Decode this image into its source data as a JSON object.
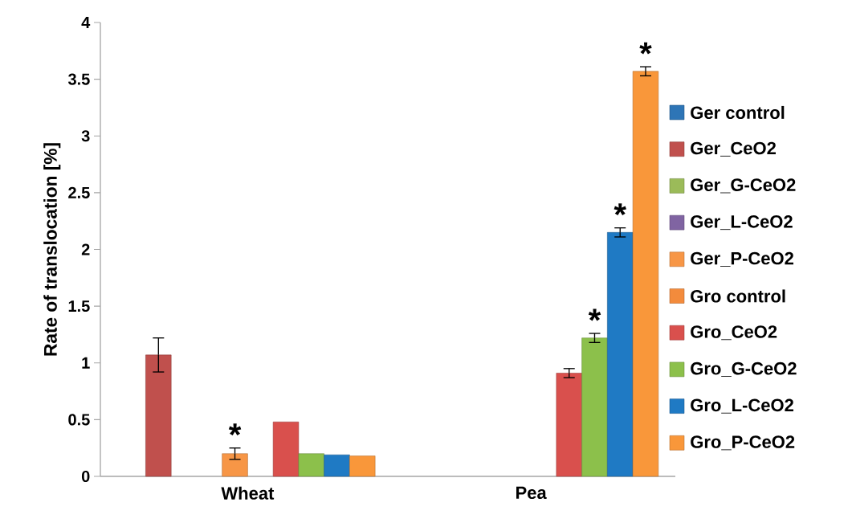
{
  "chart_data": {
    "type": "bar",
    "ylabel": "Rate of translocation [%]",
    "categories": [
      "Wheat",
      "Pea"
    ],
    "series": [
      {
        "name": "Ger control",
        "color": "#2e75b6",
        "values": [
          null,
          null
        ]
      },
      {
        "name": "Ger_CeO2",
        "color": "#c0504d",
        "values": [
          1.07,
          null
        ],
        "errors": [
          0.15,
          null
        ]
      },
      {
        "name": "Ger_G-CeO2",
        "color": "#9bbb59",
        "values": [
          null,
          null
        ]
      },
      {
        "name": "Ger_L-CeO2",
        "color": "#8064a2",
        "values": [
          null,
          null
        ]
      },
      {
        "name": "Ger_P-CeO2",
        "color": "#f79646",
        "values": [
          0.2,
          null
        ],
        "errors": [
          0.05,
          null
        ],
        "value_labels": [
          "*",
          null
        ]
      },
      {
        "name": "Gro control",
        "color": "#f38b3c",
        "values": [
          null,
          null
        ]
      },
      {
        "name": "Gro_CeO2",
        "color": "#d9504d",
        "values": [
          0.48,
          0.91
        ],
        "errors": [
          null,
          0.04
        ]
      },
      {
        "name": "Gro_G-CeO2",
        "color": "#8cc04b",
        "values": [
          0.2,
          1.22
        ],
        "errors": [
          null,
          0.04
        ],
        "value_labels": [
          null,
          "*"
        ]
      },
      {
        "name": "Gro_L-CeO2",
        "color": "#1f7ac4",
        "values": [
          0.19,
          2.15
        ],
        "errors": [
          null,
          0.04
        ],
        "value_labels": [
          null,
          "*"
        ]
      },
      {
        "name": "Gro_P-CeO2",
        "color": "#f9973a",
        "values": [
          0.18,
          3.57
        ],
        "errors": [
          null,
          0.04
        ],
        "value_labels": [
          null,
          "*"
        ]
      }
    ],
    "ylim": [
      0,
      4
    ],
    "yticks": [
      0,
      0.5,
      1,
      1.5,
      2,
      2.5,
      3,
      3.5,
      4
    ],
    "legend": "right"
  }
}
